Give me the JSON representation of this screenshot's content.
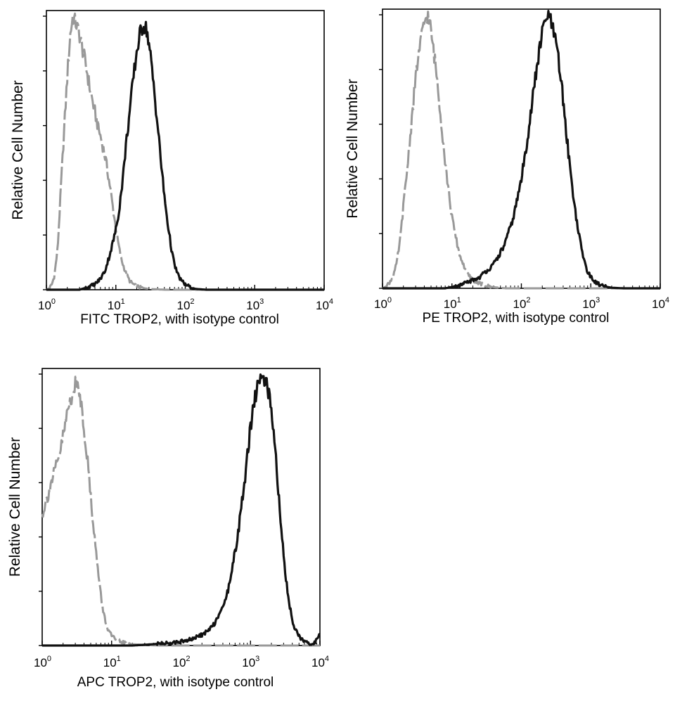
{
  "chart_data": [
    {
      "type": "line",
      "title": "",
      "xlabel": "FITC  TROP2,  with isotype control",
      "ylabel": "Relative Cell Number",
      "xscale": "log",
      "xlim": [
        1,
        10000
      ],
      "ylim": [
        0,
        100
      ],
      "x_ticks": [
        {
          "base": "10",
          "exp": "0",
          "value": 1
        },
        {
          "base": "10",
          "exp": "1",
          "value": 10
        },
        {
          "base": "10",
          "exp": "2",
          "value": 100
        },
        {
          "base": "10",
          "exp": "3",
          "value": 1000
        },
        {
          "base": "10",
          "exp": "4",
          "value": 10000
        }
      ],
      "y_ticks": [
        0,
        20,
        40,
        60,
        80,
        100
      ],
      "series": [
        {
          "name": "isotype control",
          "color": "#999999",
          "style": "dashed",
          "points": [
            [
              1.0,
              0
            ],
            [
              1.1,
              0.5
            ],
            [
              1.2,
              2
            ],
            [
              1.3,
              5
            ],
            [
              1.45,
              15
            ],
            [
              1.6,
              35
            ],
            [
              1.8,
              58
            ],
            [
              2.0,
              78
            ],
            [
              2.2,
              93
            ],
            [
              2.4,
              100
            ],
            [
              2.7,
              97
            ],
            [
              3.0,
              93
            ],
            [
              3.3,
              88
            ],
            [
              3.7,
              82
            ],
            [
              4.2,
              74
            ],
            [
              4.8,
              67
            ],
            [
              5.5,
              60
            ],
            [
              6.3,
              54
            ],
            [
              7.2,
              47
            ],
            [
              8.2,
              38
            ],
            [
              9.3,
              28
            ],
            [
              10.5,
              19
            ],
            [
              12,
              11
            ],
            [
              14,
              6
            ],
            [
              16,
              3
            ],
            [
              19,
              1.5
            ],
            [
              23,
              0.7
            ],
            [
              30,
              0.3
            ],
            [
              50,
              0
            ],
            [
              10000,
              0
            ]
          ]
        },
        {
          "name": "TROP2",
          "color": "#111111",
          "style": "solid",
          "points": [
            [
              1.0,
              0
            ],
            [
              3,
              0
            ],
            [
              4,
              1
            ],
            [
              5,
              2
            ],
            [
              6,
              4
            ],
            [
              7,
              7
            ],
            [
              8,
              12
            ],
            [
              9,
              17
            ],
            [
              10,
              22
            ],
            [
              11,
              28
            ],
            [
              12,
              36
            ],
            [
              13,
              44
            ],
            [
              14,
              53
            ],
            [
              16,
              66
            ],
            [
              18,
              78
            ],
            [
              20,
              87
            ],
            [
              22,
              93
            ],
            [
              25,
              97
            ],
            [
              28,
              95
            ],
            [
              31,
              87
            ],
            [
              35,
              75
            ],
            [
              40,
              60
            ],
            [
              45,
              46
            ],
            [
              50,
              34
            ],
            [
              56,
              24
            ],
            [
              63,
              15
            ],
            [
              70,
              9
            ],
            [
              80,
              5
            ],
            [
              90,
              3
            ],
            [
              100,
              2
            ],
            [
              115,
              1
            ],
            [
              140,
              0.3
            ],
            [
              200,
              0
            ],
            [
              10000,
              0
            ]
          ]
        }
      ]
    },
    {
      "type": "line",
      "title": "",
      "xlabel": "PE  TROP2,  with isotype control",
      "ylabel": "Relative Cell Number",
      "xscale": "log",
      "xlim": [
        1,
        10000
      ],
      "ylim": [
        0,
        100
      ],
      "x_ticks": [
        {
          "base": "10",
          "exp": "0",
          "value": 1
        },
        {
          "base": "10",
          "exp": "1",
          "value": 10
        },
        {
          "base": "10",
          "exp": "2",
          "value": 100
        },
        {
          "base": "10",
          "exp": "3",
          "value": 1000
        },
        {
          "base": "10",
          "exp": "4",
          "value": 10000
        }
      ],
      "y_ticks": [
        0,
        20,
        40,
        60,
        80,
        100
      ],
      "series": [
        {
          "name": "isotype control",
          "color": "#999999",
          "style": "dashed",
          "points": [
            [
              1.0,
              0
            ],
            [
              1.1,
              0.5
            ],
            [
              1.25,
              2
            ],
            [
              1.4,
              4
            ],
            [
              1.6,
              9
            ],
            [
              1.8,
              18
            ],
            [
              2.0,
              30
            ],
            [
              2.3,
              45
            ],
            [
              2.6,
              60
            ],
            [
              2.9,
              73
            ],
            [
              3.2,
              83
            ],
            [
              3.6,
              91
            ],
            [
              4.0,
              97
            ],
            [
              4.4,
              100
            ],
            [
              4.8,
              97
            ],
            [
              5.3,
              89
            ],
            [
              5.9,
              80
            ],
            [
              6.5,
              70
            ],
            [
              7.2,
              58
            ],
            [
              8.0,
              46
            ],
            [
              9,
              35
            ],
            [
              10,
              26
            ],
            [
              11.5,
              18
            ],
            [
              13,
              12
            ],
            [
              15,
              8
            ],
            [
              17,
              5
            ],
            [
              20,
              3
            ],
            [
              24,
              2
            ],
            [
              30,
              1
            ],
            [
              40,
              0.4
            ],
            [
              60,
              0
            ],
            [
              10000,
              0
            ]
          ]
        },
        {
          "name": "TROP2",
          "color": "#111111",
          "style": "solid",
          "points": [
            [
              1.0,
              0
            ],
            [
              8,
              0
            ],
            [
              10,
              0.5
            ],
            [
              13,
              1
            ],
            [
              16,
              2
            ],
            [
              20,
              3
            ],
            [
              25,
              4
            ],
            [
              30,
              6
            ],
            [
              38,
              8
            ],
            [
              45,
              11
            ],
            [
              55,
              15
            ],
            [
              65,
              20
            ],
            [
              75,
              25
            ],
            [
              85,
              31
            ],
            [
              100,
              40
            ],
            [
              115,
              50
            ],
            [
              130,
              60
            ],
            [
              150,
              72
            ],
            [
              170,
              82
            ],
            [
              190,
              90
            ],
            [
              210,
              96
            ],
            [
              240,
              100
            ],
            [
              270,
              97
            ],
            [
              300,
              92
            ],
            [
              340,
              84
            ],
            [
              380,
              74
            ],
            [
              420,
              63
            ],
            [
              470,
              51
            ],
            [
              530,
              39
            ],
            [
              600,
              28
            ],
            [
              680,
              19
            ],
            [
              770,
              12
            ],
            [
              870,
              7
            ],
            [
              1000,
              4
            ],
            [
              1200,
              2
            ],
            [
              1500,
              0.8
            ],
            [
              2000,
              0.2
            ],
            [
              3000,
              0
            ],
            [
              10000,
              0
            ]
          ]
        }
      ]
    },
    {
      "type": "line",
      "title": "",
      "xlabel": "APC TROP2, with isotype control",
      "ylabel": "Relative Cell Number",
      "xscale": "log",
      "xlim": [
        1,
        10000
      ],
      "ylim": [
        0,
        100
      ],
      "x_ticks": [
        {
          "base": "10",
          "exp": "0",
          "value": 1
        },
        {
          "base": "10",
          "exp": "1",
          "value": 10
        },
        {
          "base": "10",
          "exp": "2",
          "value": 100
        },
        {
          "base": "10",
          "exp": "3",
          "value": 1000
        },
        {
          "base": "10",
          "exp": "4",
          "value": 10000
        }
      ],
      "y_ticks": [
        0,
        20,
        40,
        60,
        80,
        100
      ],
      "series": [
        {
          "name": "isotype control",
          "color": "#999999",
          "style": "dashed",
          "points": [
            [
              1.0,
              48
            ],
            [
              1.1,
              52
            ],
            [
              1.2,
              55
            ],
            [
              1.35,
              60
            ],
            [
              1.5,
              64
            ],
            [
              1.7,
              68
            ],
            [
              1.9,
              74
            ],
            [
              2.1,
              80
            ],
            [
              2.3,
              86
            ],
            [
              2.6,
              91
            ],
            [
              2.9,
              95
            ],
            [
              3.1,
              97
            ],
            [
              3.4,
              94
            ],
            [
              3.7,
              88
            ],
            [
              4.0,
              80
            ],
            [
              4.4,
              71
            ],
            [
              4.8,
              60
            ],
            [
              5.2,
              50
            ],
            [
              5.7,
              40
            ],
            [
              6.2,
              30
            ],
            [
              6.8,
              21
            ],
            [
              7.5,
              13
            ],
            [
              8.5,
              7
            ],
            [
              10,
              3.5
            ],
            [
              12,
              2
            ],
            [
              15,
              1
            ],
            [
              20,
              0.5
            ],
            [
              30,
              0.2
            ],
            [
              50,
              0
            ],
            [
              10000,
              0
            ]
          ]
        },
        {
          "name": "TROP2",
          "color": "#111111",
          "style": "solid",
          "points": [
            [
              1.0,
              0
            ],
            [
              20,
              0
            ],
            [
              40,
              0.5
            ],
            [
              70,
              1
            ],
            [
              100,
              1.5
            ],
            [
              150,
              2.5
            ],
            [
              200,
              4
            ],
            [
              260,
              6
            ],
            [
              320,
              9
            ],
            [
              400,
              14
            ],
            [
              480,
              21
            ],
            [
              560,
              30
            ],
            [
              650,
              40
            ],
            [
              750,
              52
            ],
            [
              850,
              64
            ],
            [
              950,
              75
            ],
            [
              1050,
              85
            ],
            [
              1200,
              93
            ],
            [
              1350,
              98
            ],
            [
              1500,
              100
            ],
            [
              1700,
              97
            ],
            [
              1900,
              90
            ],
            [
              2100,
              80
            ],
            [
              2350,
              67
            ],
            [
              2600,
              52
            ],
            [
              2900,
              38
            ],
            [
              3200,
              26
            ],
            [
              3600,
              16
            ],
            [
              4000,
              9
            ],
            [
              4600,
              5
            ],
            [
              5300,
              2.5
            ],
            [
              6500,
              1
            ],
            [
              8000,
              0.5
            ],
            [
              9000,
              2
            ],
            [
              10000,
              4
            ]
          ]
        }
      ]
    }
  ]
}
